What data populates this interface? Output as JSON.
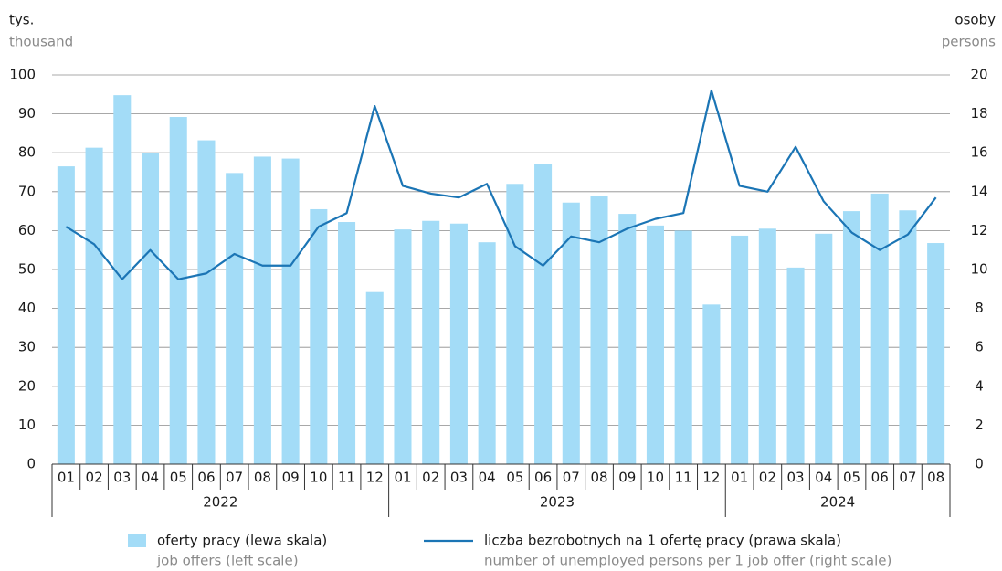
{
  "chart_data": {
    "type": "bar_line",
    "y_label": {
      "pl": "tys.",
      "en": "thousand"
    },
    "y2_label": {
      "pl": "osoby",
      "en": "persons"
    },
    "categories": [
      "01",
      "02",
      "03",
      "04",
      "05",
      "06",
      "07",
      "08",
      "09",
      "10",
      "11",
      "12",
      "01",
      "02",
      "03",
      "04",
      "05",
      "06",
      "07",
      "08",
      "09",
      "10",
      "11",
      "12",
      "01",
      "02",
      "03",
      "04",
      "05",
      "06",
      "07",
      "08"
    ],
    "years": [
      "2022",
      "2023",
      "2024"
    ],
    "series": [
      {
        "name": "oferty pracy (lewa skala)",
        "name_en": "job offers (left scale)",
        "type": "bar",
        "color": "#a3dcf7",
        "values": [
          76.5,
          81.3,
          94.8,
          80,
          89.2,
          83.2,
          74.8,
          79,
          78.5,
          65.5,
          62.2,
          44.2,
          60.3,
          62.5,
          61.8,
          57,
          72,
          77,
          67.2,
          69,
          64.3,
          61.3,
          60,
          41,
          58.7,
          60.5,
          50.5,
          59.2,
          65,
          69.5,
          65.2,
          56.8
        ]
      },
      {
        "name": "liczba bezrobotnych na 1 ofertę pracy (prawa skala)",
        "name_en": "number of unemployed persons per 1 job offer (right scale)",
        "type": "line",
        "axis": "y2",
        "color": "#1b75b5",
        "values": [
          12.2,
          11.3,
          9.5,
          11,
          9.5,
          9.8,
          10.8,
          10.2,
          10.2,
          12.2,
          12.9,
          18.4,
          14.3,
          13.9,
          13.7,
          14.4,
          11.2,
          10.2,
          11.7,
          11.4,
          12.1,
          12.6,
          12.9,
          19.2,
          14.3,
          14.0,
          16.3,
          13.5,
          11.9,
          11.0,
          11.8,
          13.7
        ]
      }
    ],
    "ylim": [
      0,
      100
    ],
    "yticks": [
      0,
      10,
      20,
      30,
      40,
      50,
      60,
      70,
      80,
      90,
      100
    ],
    "y2lim": [
      0,
      20
    ],
    "y2ticks": [
      0,
      2,
      4,
      6,
      8,
      10,
      12,
      14,
      16,
      18,
      20
    ],
    "grid": true
  }
}
